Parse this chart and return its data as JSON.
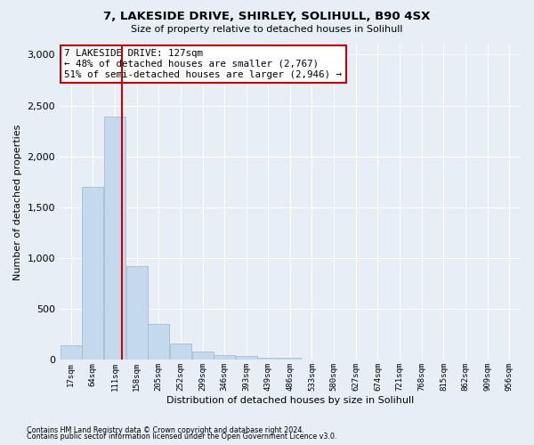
{
  "title": "7, LAKESIDE DRIVE, SHIRLEY, SOLIHULL, B90 4SX",
  "subtitle": "Size of property relative to detached houses in Solihull",
  "xlabel": "Distribution of detached houses by size in Solihull",
  "ylabel": "Number of detached properties",
  "bar_values": [
    140,
    1700,
    2390,
    920,
    350,
    160,
    85,
    50,
    35,
    25,
    25,
    0,
    0,
    0,
    0,
    0,
    0,
    0,
    0,
    0
  ],
  "bar_centers": [
    17,
    64,
    111,
    158,
    205,
    252,
    299,
    346,
    393,
    439,
    486,
    533,
    580,
    627,
    674,
    721,
    768,
    815,
    862,
    909
  ],
  "xtick_labels": [
    "17sqm",
    "64sqm",
    "111sqm",
    "158sqm",
    "205sqm",
    "252sqm",
    "299sqm",
    "346sqm",
    "393sqm",
    "439sqm",
    "486sqm",
    "533sqm",
    "580sqm",
    "627sqm",
    "674sqm",
    "721sqm",
    "768sqm",
    "815sqm",
    "862sqm",
    "909sqm",
    "956sqm"
  ],
  "bar_color": "#c5d9ed",
  "bar_edgecolor": "#a0bdd6",
  "property_size": 127,
  "property_label": "7 LAKESIDE DRIVE: 127sqm",
  "annotation_line1": "← 48% of detached houses are smaller (2,767)",
  "annotation_line2": "51% of semi-detached houses are larger (2,946) →",
  "vline_color": "#cc0000",
  "annotation_box_edgecolor": "#cc0000",
  "annotation_box_facecolor": "#ffffff",
  "ylim": [
    0,
    3100
  ],
  "yticks": [
    0,
    500,
    1000,
    1500,
    2000,
    2500,
    3000
  ],
  "footnote1": "Contains HM Land Registry data © Crown copyright and database right 2024.",
  "footnote2": "Contains public sector information licensed under the Open Government Licence v3.0.",
  "background_color": "#e8eef5",
  "plot_background": "#e8eef5",
  "bin_width": 47,
  "xlim_left": -7,
  "xlim_right": 980
}
